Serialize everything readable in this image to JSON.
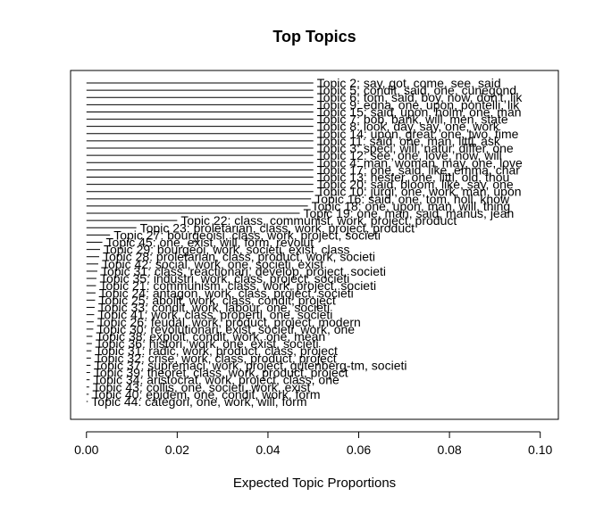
{
  "chart_data": {
    "type": "bar",
    "orientation": "horizontal",
    "title": "Top Topics",
    "xlabel": "Expected Topic Proportions",
    "ylabel": "",
    "xlim": [
      -0.0035,
      0.104
    ],
    "x_ticks": [
      0.0,
      0.02,
      0.04,
      0.06,
      0.08,
      0.1
    ],
    "x_tick_labels": [
      "0.00",
      "0.02",
      "0.04",
      "0.06",
      "0.08",
      "0.10"
    ],
    "grid": false,
    "legend": "none",
    "categories": [
      "Topic 2: say, got, come, see, said",
      "Topic 5: condit, said, one, cunegond",
      "Topic 6: tom, said, boy, now, don't, lik",
      "Topic 9: edna, one, upon, pontelli, lik",
      "Topic 15: said, upon, holm, one, man",
      "Topic 7: bob, bank, will, men, state",
      "Topic 8: look, day, say, one, work",
      "Topic 14: upon, great, one, two, time",
      "Topic 11: said, one, man, littl, ask",
      "Topic 3: speci, will, natur, differ, one",
      "Topic 12: see, one, love, now, will",
      "Topic 4: man, woman, may, one, love",
      "Topic 17: one, said, like, emma, char",
      "Topic 13: hester, one, littl, old, thou",
      "Topic 20: said, bloom, like, say, one",
      "Topic 10: jurgi, one, work, man, upon",
      "Topic 16: said, one, tom, holl, know",
      "Topic 18: one, upon, man, will, thing",
      "Topic 19: one, man, said, manus, jean",
      "Topic 22: class, communist, work, project, product",
      "Topic 23: proletarian, class, work, project, product",
      "Topic 27: bourgeoisi, class, work, project, societi",
      "Topic 45: one, exist, will, form, revolut",
      "Topic 29: bourgeoi, work, societi, exist, class",
      "Topic 28: proletarian, class, product, work, societi",
      "Topic 42: social, work, one, societi, exist",
      "Topic 31: class, reactionari, develop, project, societi",
      "Topic 35: industri, work, class, project, societi",
      "Topic 21: communism, class, work, project, societi",
      "Topic 24: antagon, work, class, project, societi",
      "Topic 25: abolit, work, class, condit, project",
      "Topic 33: condit, work, labour, one, societi",
      "Topic 41: work, class, properti, one, societi",
      "Topic 26: feudal, work, product, project, modern",
      "Topic 30: revolutionari, exist, societi, work, one",
      "Topic 38: exploit, condit, work, one, mean",
      "Topic 36: histori, work, one, exist, societi",
      "Topic 31: radic, work, product, class, project",
      "Topic 32: crise, work, class, product, project",
      "Topic 37: supremaci, work, project, gutenberg-tm, societi",
      "Topic 39: theoret, class, work, product, project",
      "Topic 34: aristocrat, work, project, class, one",
      "Topic 43: collis, one, societi, work, exist",
      "Topic 40: epidem, one, condit, work, form",
      "Topic 44: categori, one, work, will, form"
    ],
    "values": [
      0.05,
      0.05,
      0.05,
      0.05,
      0.05,
      0.05,
      0.05,
      0.05,
      0.05,
      0.05,
      0.05,
      0.05,
      0.05,
      0.05,
      0.05,
      0.05,
      0.0495,
      0.0488,
      0.047,
      0.02,
      0.011,
      0.0052,
      0.0035,
      0.003,
      0.0028,
      0.0026,
      0.0024,
      0.0022,
      0.0021,
      0.002,
      0.0019,
      0.0018,
      0.0017,
      0.0016,
      0.0015,
      0.0013,
      0.0012,
      0.0011,
      0.001,
      0.0009,
      0.0008,
      0.0007,
      0.0006,
      0.0005,
      0.0003
    ]
  }
}
